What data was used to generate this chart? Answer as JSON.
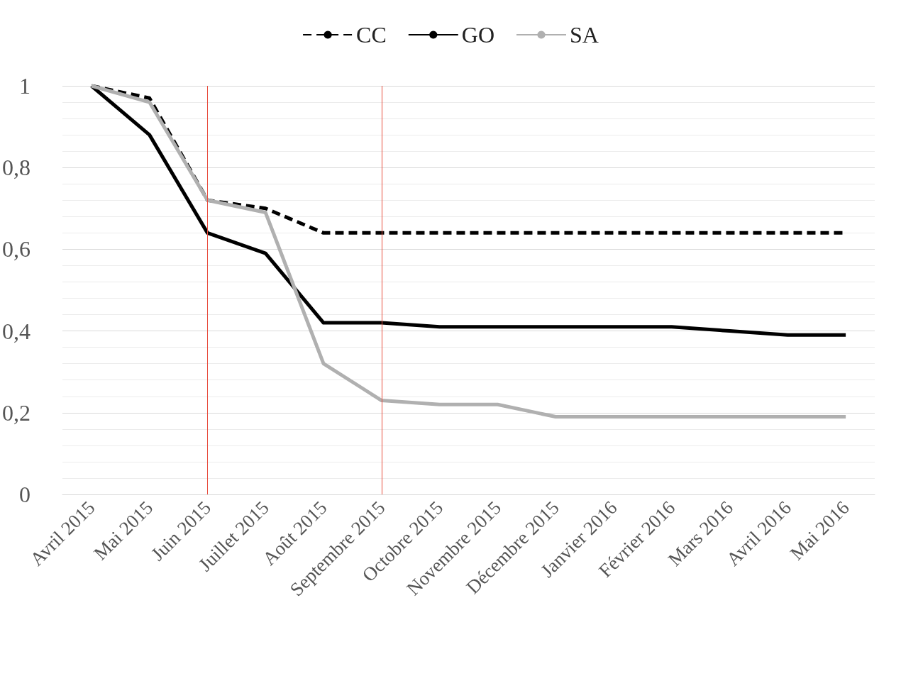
{
  "chart_data": {
    "type": "line",
    "categories": [
      "Avril 2015",
      "Mai 2015",
      "Juin 2015",
      "Juillet 2015",
      "Août 2015",
      "Septembre 2015",
      "Octobre 2015",
      "Novembre 2015",
      "Décembre 2015",
      "Janvier 2016",
      "Février 2016",
      "Mars 2016",
      "Avril 2016",
      "Mai 2016"
    ],
    "series": [
      {
        "name": "CC",
        "color": "#000000",
        "line_style": "dashed",
        "values": [
          1,
          0.97,
          0.72,
          0.7,
          0.64,
          0.64,
          0.64,
          0.64,
          0.64,
          0.64,
          0.64,
          0.64,
          0.64,
          0.64
        ]
      },
      {
        "name": "GO",
        "color": "#000000",
        "line_style": "solid",
        "values": [
          1,
          0.88,
          0.64,
          0.59,
          0.42,
          0.42,
          0.41,
          0.41,
          0.41,
          0.41,
          0.41,
          0.4,
          0.39,
          0.39
        ]
      },
      {
        "name": "SA",
        "color": "#b0b0b0",
        "line_style": "solid",
        "values": [
          1,
          0.96,
          0.72,
          0.69,
          0.32,
          0.23,
          0.22,
          0.22,
          0.19,
          0.19,
          0.19,
          0.19,
          0.19,
          0.19
        ]
      }
    ],
    "ylim": [
      0,
      1
    ],
    "yticks": [
      0,
      {
        "value": 0.2,
        "label": "0,2"
      },
      {
        "value": 0.4,
        "label": "0,4"
      },
      {
        "value": 0.6,
        "label": "0,6"
      },
      {
        "value": 0.8,
        "label": "0,8"
      },
      1
    ],
    "ref_lines": [
      {
        "axis": "x",
        "value": "Juin 2015",
        "color": "#e84c3d"
      },
      {
        "axis": "x",
        "value": "Septembre 2015",
        "color": "#e84c3d"
      }
    ],
    "grid": "y",
    "legend": "top",
    "marker": "none"
  }
}
